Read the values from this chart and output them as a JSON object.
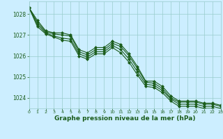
{
  "title": "Graphe pression niveau de la mer (hPa)",
  "bg_color": "#cceeff",
  "grid_color": "#99cccc",
  "line_color": "#1a5c1a",
  "series": [
    [
      1028.3,
      1027.7,
      1027.2,
      1027.1,
      1027.1,
      1027.0,
      1026.3,
      1026.15,
      1026.4,
      1026.4,
      1026.7,
      1026.55,
      1026.1,
      1025.5,
      1024.8,
      1024.8,
      1024.55,
      1024.1,
      1023.85,
      1023.85,
      1023.85,
      1023.75,
      1023.75,
      1023.65
    ],
    [
      1028.3,
      1027.6,
      1027.15,
      1027.05,
      1027.0,
      1026.95,
      1026.2,
      1026.05,
      1026.3,
      1026.3,
      1026.6,
      1026.45,
      1026.0,
      1025.4,
      1024.75,
      1024.7,
      1024.45,
      1024.0,
      1023.8,
      1023.8,
      1023.8,
      1023.7,
      1023.7,
      1023.6
    ],
    [
      1028.3,
      1027.5,
      1027.1,
      1026.95,
      1026.85,
      1026.8,
      1026.1,
      1025.95,
      1026.2,
      1026.2,
      1026.5,
      1026.3,
      1025.85,
      1025.25,
      1024.65,
      1024.6,
      1024.35,
      1023.95,
      1023.7,
      1023.7,
      1023.7,
      1023.6,
      1023.6,
      1023.5
    ],
    [
      1028.3,
      1027.4,
      1027.05,
      1026.9,
      1026.75,
      1026.7,
      1026.0,
      1025.85,
      1026.1,
      1026.1,
      1026.4,
      1026.15,
      1025.7,
      1025.1,
      1024.55,
      1024.5,
      1024.25,
      1023.85,
      1023.6,
      1023.6,
      1023.6,
      1023.5,
      1023.5,
      1023.4
    ]
  ],
  "xlim": [
    0,
    23
  ],
  "ylim": [
    1023.5,
    1028.6
  ],
  "yticks": [
    1024,
    1025,
    1026,
    1027,
    1028
  ],
  "xticks": [
    0,
    1,
    2,
    3,
    4,
    5,
    6,
    7,
    8,
    9,
    10,
    11,
    12,
    13,
    14,
    15,
    16,
    17,
    18,
    19,
    20,
    21,
    22,
    23
  ],
  "marker": "D",
  "marker_size": 2,
  "line_width": 0.8,
  "xlabel_fontsize": 6.5,
  "xtick_fontsize": 4.5,
  "ytick_fontsize": 5.5
}
